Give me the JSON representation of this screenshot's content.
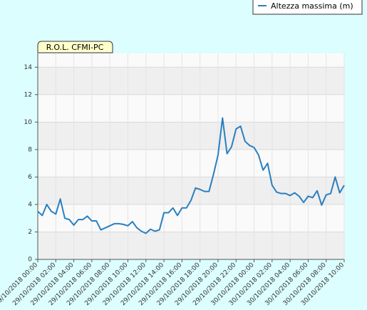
{
  "chart_data": {
    "type": "line",
    "title": "R.O.L. CFMI-PC",
    "x": [
      "29/10/2018 00:00",
      "29/10/2018 00:30",
      "29/10/2018 01:00",
      "29/10/2018 01:30",
      "29/10/2018 02:00",
      "29/10/2018 02:30",
      "29/10/2018 03:00",
      "29/10/2018 03:30",
      "29/10/2018 04:00",
      "29/10/2018 04:30",
      "29/10/2018 05:00",
      "29/10/2018 05:30",
      "29/10/2018 06:00",
      "29/10/2018 06:30",
      "29/10/2018 07:00",
      "29/10/2018 07:30",
      "29/10/2018 08:00",
      "29/10/2018 08:30",
      "29/10/2018 09:00",
      "29/10/2018 09:30",
      "29/10/2018 10:00",
      "29/10/2018 10:30",
      "29/10/2018 11:00",
      "29/10/2018 11:30",
      "29/10/2018 12:00",
      "29/10/2018 12:30",
      "29/10/2018 13:00",
      "29/10/2018 13:30",
      "29/10/2018 14:00",
      "29/10/2018 14:30",
      "29/10/2018 15:00",
      "29/10/2018 15:30",
      "29/10/2018 16:00",
      "29/10/2018 16:30",
      "29/10/2018 17:00",
      "29/10/2018 17:30",
      "29/10/2018 18:00",
      "29/10/2018 18:30",
      "29/10/2018 19:00",
      "29/10/2018 19:30",
      "29/10/2018 20:00",
      "29/10/2018 20:30",
      "29/10/2018 21:00",
      "29/10/2018 21:30",
      "29/10/2018 22:00",
      "29/10/2018 22:30",
      "29/10/2018 23:00",
      "29/10/2018 23:30",
      "30/10/2018 00:00",
      "30/10/2018 00:30",
      "30/10/2018 01:00",
      "30/10/2018 01:30",
      "30/10/2018 02:00",
      "30/10/2018 02:30",
      "30/10/2018 03:00",
      "30/10/2018 03:30",
      "30/10/2018 04:00",
      "30/10/2018 04:30",
      "30/10/2018 05:00",
      "30/10/2018 05:30",
      "30/10/2018 06:00",
      "30/10/2018 06:30",
      "30/10/2018 07:00",
      "30/10/2018 07:30",
      "30/10/2018 08:00",
      "30/10/2018 08:30",
      "30/10/2018 09:00",
      "30/10/2018 09:30",
      "30/10/2018 10:00"
    ],
    "series": [
      {
        "name": "Altezza massima (m)",
        "color": "#2a7fc0",
        "values": [
          3.5,
          3.2,
          4.0,
          3.5,
          3.3,
          4.4,
          3.0,
          2.9,
          2.5,
          2.9,
          2.9,
          3.15,
          2.8,
          2.8,
          2.15,
          2.3,
          2.45,
          2.6,
          2.6,
          2.55,
          2.45,
          2.75,
          2.3,
          2.05,
          1.9,
          2.2,
          2.05,
          2.15,
          3.4,
          3.4,
          3.75,
          3.2,
          3.75,
          3.75,
          4.3,
          5.2,
          5.1,
          4.95,
          4.95,
          6.2,
          7.6,
          10.3,
          7.7,
          8.2,
          9.5,
          9.7,
          8.6,
          8.3,
          8.15,
          7.6,
          6.5,
          7.0,
          5.4,
          4.9,
          4.8,
          4.8,
          4.65,
          4.85,
          4.6,
          4.15,
          4.6,
          4.5,
          5.0,
          3.95,
          4.7,
          4.8,
          6.0,
          4.85,
          5.4
        ]
      }
    ],
    "xlim": [
      "29/10/2018 00:00",
      "30/10/2018 10:00"
    ],
    "xticks": [
      "29/10/2018 00:00",
      "29/10/2018 02:00",
      "29/10/2018 04:00",
      "29/10/2018 06:00",
      "29/10/2018 08:00",
      "29/10/2018 10:00",
      "29/10/2018 12:00",
      "29/10/2018 14:00",
      "29/10/2018 16:00",
      "29/10/2018 18:00",
      "29/10/2018 20:00",
      "29/10/2018 22:00",
      "30/10/2018 00:00",
      "30/10/2018 02:00",
      "30/10/2018 04:00",
      "30/10/2018 06:00",
      "30/10/2018 08:00",
      "30/10/2018 10:00"
    ],
    "ylim": [
      0,
      15
    ],
    "yticks": [
      0,
      2,
      4,
      6,
      8,
      10,
      12,
      14
    ],
    "grid": true,
    "legend": "top-right"
  }
}
